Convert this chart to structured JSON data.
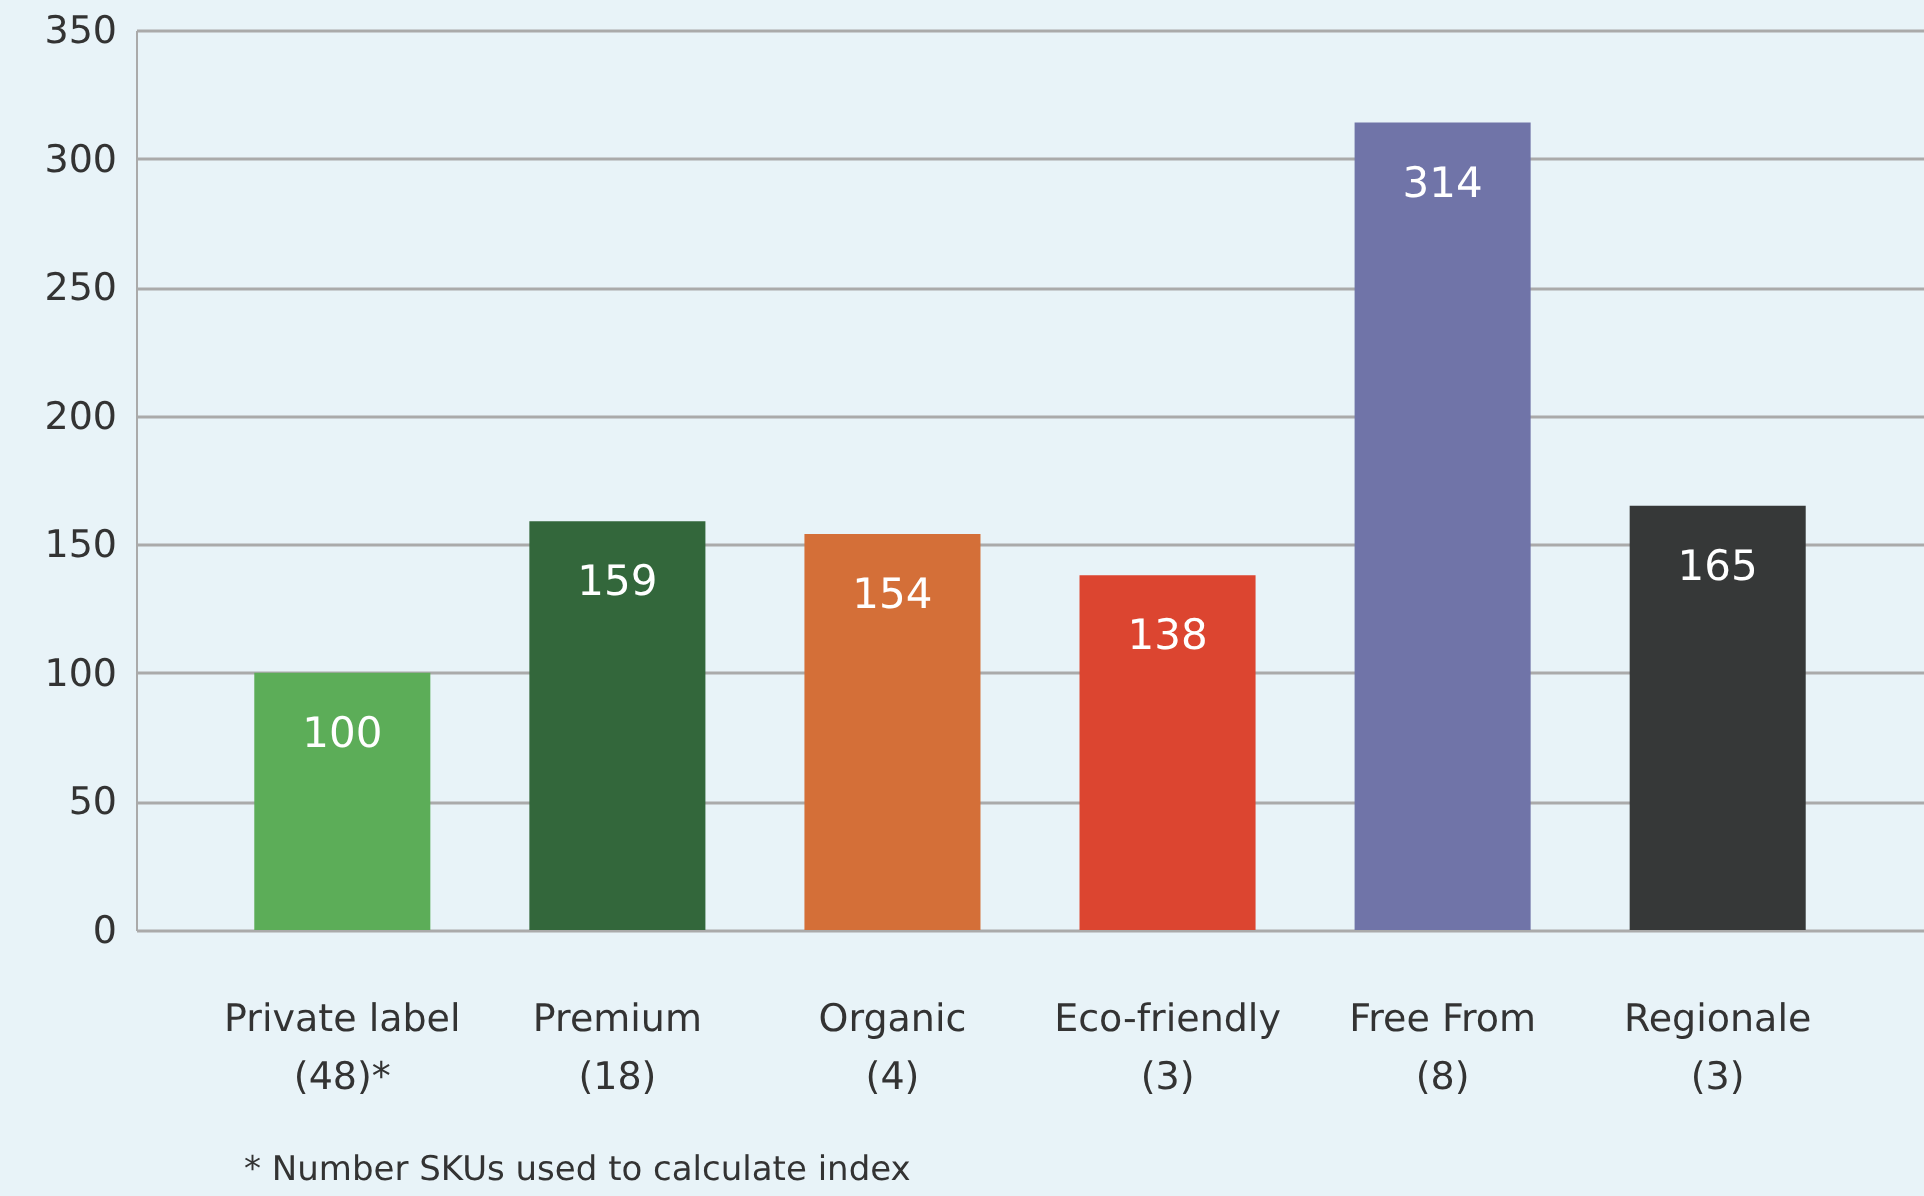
{
  "chart_data": {
    "type": "bar",
    "categories": [
      "Private label\n(48)*",
      "Premium\n(18)",
      "Organic\n(4)",
      "Eco-friendly\n(3)",
      "Free From\n(8)",
      "Regionale\n(3)"
    ],
    "values": [
      100,
      159,
      154,
      138,
      314,
      165
    ],
    "colors": [
      "#5cad58",
      "#33673b",
      "#d46f38",
      "#dc4530",
      "#7074a8",
      "#363838"
    ],
    "ylim": [
      0,
      350
    ],
    "yticks": [
      0,
      50,
      100,
      150,
      200,
      250,
      300,
      350
    ],
    "grid": "y",
    "data_labels": true,
    "annotations": [
      "* Number SKUs used to calculate index"
    ]
  }
}
